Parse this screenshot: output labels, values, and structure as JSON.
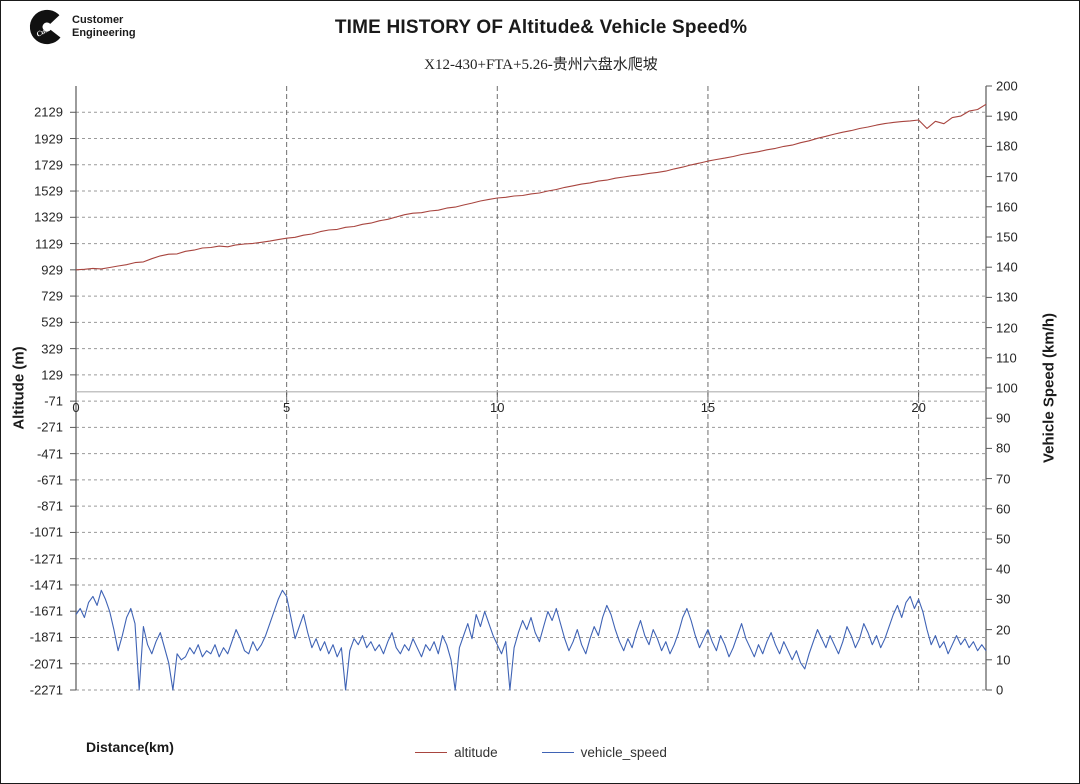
{
  "header": {
    "logo": {
      "brand": "Cummins",
      "line1": "Customer",
      "line2": "Engineering"
    },
    "title": "TIME HISTORY OF Altitude& Vehicle Speed%",
    "subtitle": "X12-430+FTA+5.26-贵州六盘水爬坡"
  },
  "footer": {
    "x_axis_caption": "Distance(km)",
    "legend": [
      {
        "label": "altitude",
        "color": "#a8453f"
      },
      {
        "label": "vehicle_speed",
        "color": "#3f63b5"
      }
    ]
  },
  "colors": {
    "altitude_line": "#a8453f",
    "speed_line": "#3f63b5",
    "grid_horizontal": "#9a9a9a",
    "grid_vertical": "#6e6e6e",
    "axis_line": "#595959",
    "category_axis_line": "#b0b0b0"
  },
  "chart_data": {
    "type": "line",
    "title": "TIME HISTORY OF Altitude& Vehicle Speed%",
    "subtitle": "X12-430+FTA+5.26-贵州六盘水爬坡",
    "xlabel": "Distance(km)",
    "x_range": [
      0,
      21.6
    ],
    "x_ticks": [
      0,
      5,
      10,
      15,
      20
    ],
    "grid": "dashed, horizontal at every 200 m (left axis), vertical at every 5 km",
    "legend_position": "bottom-center",
    "left_axis": {
      "label": "Altitude (m)",
      "min": -2271,
      "max": 2329,
      "tick_start": -2271,
      "tick_end": 2129,
      "tick_step": 200
    },
    "right_axis": {
      "label": "Vehicle Speed (km/h)",
      "min": 0,
      "max": 200,
      "tick_start": 0,
      "tick_end": 200,
      "tick_step": 10
    },
    "series": [
      {
        "name": "altitude",
        "axis": "left",
        "color": "#a8453f",
        "x_start": 0,
        "x_step": 0.2,
        "values": [
          929,
          933,
          940,
          936,
          947,
          958,
          968,
          984,
          989,
          1014,
          1035,
          1048,
          1050,
          1070,
          1079,
          1095,
          1099,
          1110,
          1104,
          1119,
          1126,
          1130,
          1139,
          1148,
          1159,
          1170,
          1177,
          1193,
          1202,
          1220,
          1232,
          1237,
          1253,
          1259,
          1276,
          1285,
          1302,
          1314,
          1331,
          1349,
          1360,
          1364,
          1377,
          1383,
          1399,
          1407,
          1423,
          1437,
          1453,
          1465,
          1476,
          1481,
          1491,
          1495,
          1507,
          1514,
          1529,
          1541,
          1557,
          1569,
          1582,
          1591,
          1605,
          1612,
          1627,
          1636,
          1646,
          1653,
          1663,
          1671,
          1681,
          1698,
          1711,
          1728,
          1742,
          1757,
          1769,
          1780,
          1792,
          1807,
          1818,
          1829,
          1843,
          1854,
          1869,
          1879,
          1897,
          1912,
          1931,
          1946,
          1963,
          1977,
          1989,
          2005,
          2017,
          2031,
          2043,
          2052,
          2058,
          2063,
          2070,
          2005,
          2060,
          2042,
          2088,
          2100,
          2138,
          2150,
          2190
        ]
      },
      {
        "name": "vehicle_speed",
        "axis": "right",
        "color": "#3f63b5",
        "x_start": 0,
        "x_step": 0.1,
        "values": [
          25,
          27,
          24,
          29,
          31,
          28,
          33,
          30,
          26,
          20,
          13,
          18,
          24,
          27,
          22,
          0,
          21,
          15,
          12,
          16,
          19,
          14,
          9,
          0,
          12,
          10,
          11,
          14,
          12,
          15,
          11,
          13,
          12,
          15,
          11,
          14,
          12,
          16,
          20,
          17,
          13,
          12,
          16,
          13,
          15,
          18,
          22,
          26,
          30,
          33,
          31,
          24,
          17,
          21,
          25,
          19,
          14,
          17,
          13,
          16,
          12,
          15,
          11,
          14,
          0,
          13,
          17,
          15,
          18,
          14,
          16,
          13,
          15,
          12,
          16,
          19,
          14,
          12,
          15,
          13,
          17,
          14,
          11,
          15,
          13,
          16,
          12,
          18,
          15,
          10,
          0,
          14,
          18,
          22,
          17,
          25,
          21,
          26,
          22,
          18,
          15,
          12,
          16,
          0,
          14,
          19,
          23,
          20,
          24,
          19,
          16,
          21,
          26,
          23,
          27,
          22,
          17,
          13,
          16,
          20,
          15,
          12,
          17,
          21,
          18,
          24,
          28,
          25,
          20,
          16,
          13,
          17,
          14,
          19,
          23,
          18,
          15,
          20,
          17,
          13,
          16,
          12,
          15,
          19,
          24,
          27,
          23,
          18,
          14,
          17,
          20,
          16,
          13,
          18,
          15,
          11,
          14,
          18,
          22,
          17,
          14,
          11,
          15,
          12,
          16,
          19,
          15,
          12,
          16,
          13,
          10,
          13,
          9,
          7,
          12,
          16,
          20,
          17,
          14,
          18,
          15,
          12,
          16,
          21,
          18,
          14,
          17,
          22,
          19,
          15,
          18,
          14,
          17,
          21,
          25,
          28,
          24,
          29,
          31,
          27,
          30,
          26,
          20,
          15,
          18,
          14,
          16,
          12,
          15,
          18,
          15,
          17,
          14,
          16,
          13,
          15,
          13
        ]
      }
    ]
  }
}
